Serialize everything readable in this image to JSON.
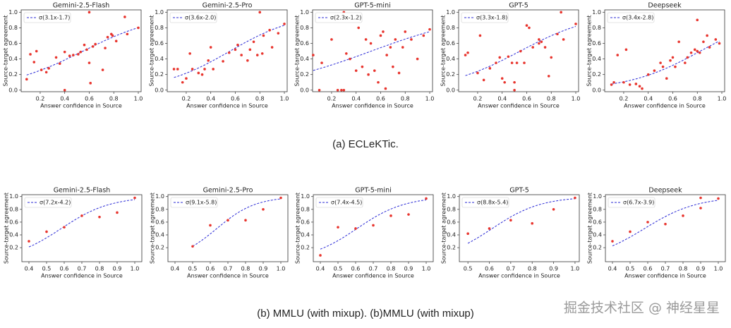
{
  "chart_data": [
    {
      "type": "scatter",
      "title": "Gemini-2.5-Flash",
      "xlabel": "Answer confidence in Source",
      "ylabel": "Source-target agreement",
      "color": "#e8352e",
      "x": [
        0.09,
        0.12,
        0.15,
        0.17,
        0.21,
        0.25,
        0.27,
        0.33,
        0.36,
        0.4,
        0.44,
        0.47,
        0.51,
        0.53,
        0.56,
        0.58,
        0.6,
        0.61,
        0.63,
        0.65,
        0.71,
        0.73,
        0.75,
        0.78,
        0.79,
        0.82,
        0.89,
        0.91,
        1.0,
        0.6,
        0.4
      ],
      "y": [
        0.14,
        0.46,
        0.36,
        0.5,
        0.26,
        0.23,
        0.28,
        0.42,
        0.34,
        0.49,
        0.44,
        0.45,
        0.46,
        0.49,
        0.58,
        0.52,
        0.35,
        0.09,
        0.56,
        0.59,
        0.26,
        0.54,
        0.68,
        0.72,
        0.7,
        0.63,
        0.94,
        0.72,
        0.8,
        1.0,
        0.0
      ],
      "fit": {
        "label": "σ(3.1x-1.7)",
        "slope": 3.1,
        "intercept": -1.7,
        "color": "#2b2bd6"
      },
      "xlim": [
        0.045,
        1.023
      ],
      "ylim": [
        -0.02,
        1.03
      ],
      "xticks": [
        0.2,
        0.4,
        0.6,
        0.8,
        {
          "value": 1,
          "label": "1.0"
        }
      ],
      "yticks": [
        {
          "value": 0,
          "label": "0.0"
        },
        0.2,
        0.4,
        0.6,
        0.8,
        {
          "value": 1,
          "label": "1.0"
        }
      ]
    },
    {
      "type": "scatter",
      "title": "Gemini-2.5-Pro",
      "xlabel": "Answer confidence in Source",
      "ylabel": "Source-target agreement",
      "color": "#e8352e",
      "x": [
        0.1,
        0.13,
        0.17,
        0.2,
        0.23,
        0.25,
        0.3,
        0.33,
        0.35,
        0.38,
        0.4,
        0.42,
        0.5,
        0.55,
        0.6,
        0.62,
        0.65,
        0.7,
        0.72,
        0.75,
        0.78,
        0.8,
        0.83,
        0.88,
        0.9,
        0.95,
        1.0,
        0.82
      ],
      "y": [
        0.27,
        0.27,
        0.1,
        0.15,
        0.47,
        0.27,
        0.22,
        0.2,
        0.27,
        0.38,
        0.55,
        0.27,
        0.37,
        0.48,
        0.52,
        0.58,
        0.45,
        0.38,
        0.52,
        0.62,
        0.45,
        1.0,
        0.7,
        0.77,
        0.55,
        0.73,
        0.85,
        0.47
      ],
      "fit": {
        "label": "σ(3.6x-2.0)",
        "slope": 3.6,
        "intercept": -2.0,
        "color": "#2b2bd6"
      },
      "xlim": [
        0.045,
        1.023
      ],
      "ylim": [
        -0.02,
        1.03
      ],
      "xticks": [
        0.2,
        0.4,
        0.6,
        0.8,
        {
          "value": 1,
          "label": "1.0"
        }
      ],
      "yticks": [
        {
          "value": 0,
          "label": "0.0"
        },
        0.2,
        0.4,
        0.6,
        0.8,
        {
          "value": 1,
          "label": "1.0"
        }
      ]
    },
    {
      "type": "scatter",
      "title": "GPT-5-mini",
      "xlabel": "Answer confidence in Source",
      "ylabel": "Source-target agreement",
      "color": "#e8352e",
      "x": [
        0.05,
        0.1,
        0.12,
        0.2,
        0.25,
        0.28,
        0.3,
        0.32,
        0.35,
        0.4,
        0.42,
        0.45,
        0.48,
        0.5,
        0.52,
        0.55,
        0.58,
        0.6,
        0.62,
        0.65,
        0.68,
        0.7,
        0.72,
        0.75,
        0.78,
        0.8,
        0.85,
        0.9,
        0.95,
        1.0,
        0.3,
        0.64
      ],
      "y": [
        0.45,
        0.0,
        0.35,
        0.65,
        0.0,
        0.0,
        0.0,
        0.47,
        0.4,
        0.25,
        0.8,
        0.3,
        0.65,
        0.2,
        0.6,
        0.25,
        0.1,
        0.7,
        0.75,
        0.45,
        0.55,
        0.3,
        0.65,
        0.22,
        0.55,
        0.75,
        0.65,
        0.4,
        0.7,
        0.78,
        1.0,
        0.02
      ],
      "fit": {
        "label": "σ(2.3x-1.2)",
        "slope": 2.3,
        "intercept": -1.2,
        "color": "#2b2bd6"
      },
      "xlim": [
        0.045,
        1.023
      ],
      "ylim": [
        -0.02,
        1.03
      ],
      "xticks": [
        0.2,
        0.4,
        0.6,
        0.8,
        {
          "value": 1,
          "label": "1.0"
        }
      ],
      "yticks": [
        {
          "value": 0,
          "label": "0.0"
        },
        0.2,
        0.4,
        0.6,
        0.8,
        {
          "value": 1,
          "label": "1.0"
        }
      ]
    },
    {
      "type": "scatter",
      "title": "GPT-5",
      "xlabel": "Answer confidence in Source",
      "ylabel": "Source-target agreement",
      "color": "#e8352e",
      "x": [
        0.1,
        0.12,
        0.2,
        0.22,
        0.25,
        0.3,
        0.35,
        0.38,
        0.4,
        0.42,
        0.45,
        0.48,
        0.5,
        0.52,
        0.55,
        0.58,
        0.6,
        0.62,
        0.65,
        0.7,
        0.72,
        0.75,
        0.78,
        0.8,
        0.85,
        0.88,
        0.9,
        1.0,
        0.7,
        0.5
      ],
      "y": [
        0.45,
        0.48,
        0.22,
        0.7,
        0.13,
        0.28,
        0.35,
        0.42,
        0.15,
        0.1,
        0.43,
        0.35,
        0.1,
        0.35,
        0.5,
        0.35,
        0.83,
        0.8,
        0.55,
        0.65,
        0.62,
        0.55,
        0.18,
        0.42,
        0.72,
        1.0,
        0.65,
        0.85,
        0.6,
        0.0
      ],
      "fit": {
        "label": "σ(3.3x-1.8)",
        "slope": 3.3,
        "intercept": -1.8,
        "color": "#2b2bd6"
      },
      "xlim": [
        0.045,
        1.023
      ],
      "ylim": [
        -0.02,
        1.03
      ],
      "xticks": [
        0.2,
        0.4,
        0.6,
        0.8,
        {
          "value": 1,
          "label": "1.0"
        }
      ],
      "yticks": [
        {
          "value": 0,
          "label": "0.0"
        },
        0.2,
        0.4,
        0.6,
        0.8,
        {
          "value": 1,
          "label": "1.0"
        }
      ]
    },
    {
      "type": "scatter",
      "title": "Deepseek",
      "xlabel": "Answer confidence in Source",
      "ylabel": "Source-target agreement",
      "color": "#e8352e",
      "x": [
        0.1,
        0.12,
        0.15,
        0.2,
        0.22,
        0.25,
        0.3,
        0.33,
        0.35,
        0.4,
        0.45,
        0.5,
        0.52,
        0.55,
        0.58,
        0.6,
        0.62,
        0.65,
        0.7,
        0.72,
        0.75,
        0.78,
        0.8,
        0.82,
        0.85,
        0.88,
        0.9,
        0.95,
        0.98,
        0.8
      ],
      "y": [
        0.07,
        0.1,
        0.45,
        0.1,
        0.52,
        0.07,
        0.08,
        0.05,
        0.02,
        0.2,
        0.25,
        0.35,
        0.3,
        0.15,
        0.38,
        0.42,
        0.3,
        0.62,
        0.35,
        0.42,
        0.48,
        0.52,
        0.9,
        0.48,
        0.62,
        0.7,
        0.55,
        0.65,
        0.6,
        0.5
      ],
      "fit": {
        "label": "σ(3.4x-2.8)",
        "slope": 3.4,
        "intercept": -2.8,
        "color": "#2b2bd6"
      },
      "xlim": [
        0.045,
        1.023
      ],
      "ylim": [
        -0.02,
        1.03
      ],
      "xticks": [
        0.2,
        0.4,
        0.6,
        0.8,
        {
          "value": 1,
          "label": "1.0"
        }
      ],
      "yticks": [
        {
          "value": 0,
          "label": "0.0"
        },
        0.2,
        0.4,
        0.6,
        0.8,
        {
          "value": 1,
          "label": "1.0"
        }
      ]
    },
    {
      "type": "scatter",
      "title": "Gemini-2.5-Flash",
      "xlabel": "Answer confidence in Source",
      "ylabel": "Source-target agreement",
      "color": "#e8352e",
      "x": [
        0.4,
        0.5,
        0.6,
        0.7,
        0.8,
        0.9,
        1.0
      ],
      "y": [
        0.3,
        0.45,
        0.52,
        0.7,
        0.68,
        0.75,
        0.98
      ],
      "fit": {
        "label": "σ(7.2x-4.2)",
        "slope": 7.2,
        "intercept": -4.2,
        "color": "#2b2bd6"
      },
      "xlim": [
        0.36,
        1.04
      ],
      "ylim": [
        -0.02,
        1.03
      ],
      "xticks": [
        0.4,
        0.5,
        0.6,
        0.7,
        0.8,
        0.9,
        {
          "value": 1,
          "label": "1.0"
        }
      ],
      "yticks": [
        0.2,
        0.4,
        0.6,
        0.8,
        {
          "value": 1,
          "label": "1.0"
        }
      ]
    },
    {
      "type": "scatter",
      "title": "Gemini-2.5-Pro",
      "xlabel": "Answer confidence in Source",
      "ylabel": "Source-target agreement",
      "color": "#e8352e",
      "x": [
        0.5,
        0.6,
        0.7,
        0.8,
        0.9,
        1.0
      ],
      "y": [
        0.22,
        0.55,
        0.63,
        0.63,
        0.8,
        0.98
      ],
      "fit": {
        "label": "σ(9.1x-5.8)",
        "slope": 9.1,
        "intercept": -5.8,
        "color": "#2b2bd6"
      },
      "xlim": [
        0.36,
        1.04
      ],
      "ylim": [
        -0.02,
        1.03
      ],
      "xticks": [
        0.4,
        0.5,
        0.6,
        0.7,
        0.8,
        0.9,
        {
          "value": 1,
          "label": "1.0"
        }
      ],
      "yticks": [
        0.2,
        0.4,
        0.6,
        0.8,
        {
          "value": 1,
          "label": "1.0"
        }
      ]
    },
    {
      "type": "scatter",
      "title": "GPT-5-mini",
      "xlabel": "Answer confidence in Source",
      "ylabel": "Source-target agreement",
      "color": "#e8352e",
      "x": [
        0.4,
        0.5,
        0.6,
        0.7,
        0.8,
        0.9,
        1.0
      ],
      "y": [
        0.08,
        0.52,
        0.5,
        0.55,
        0.7,
        0.72,
        0.97
      ],
      "fit": {
        "label": "σ(7.4x-4.5)",
        "slope": 7.4,
        "intercept": -4.5,
        "color": "#2b2bd6"
      },
      "xlim": [
        0.36,
        1.04
      ],
      "ylim": [
        -0.02,
        1.03
      ],
      "xticks": [
        0.4,
        0.5,
        0.6,
        0.7,
        0.8,
        0.9,
        {
          "value": 1,
          "label": "1.0"
        }
      ],
      "yticks": [
        0.2,
        0.4,
        0.6,
        0.8,
        {
          "value": 1,
          "label": "1.0"
        }
      ]
    },
    {
      "type": "scatter",
      "title": "GPT-5",
      "xlabel": "Answer confidence in Source",
      "ylabel": "Source-target agreement",
      "color": "#e8352e",
      "x": [
        0.5,
        0.6,
        0.7,
        0.8,
        0.9,
        1.0
      ],
      "y": [
        0.42,
        0.5,
        0.63,
        0.58,
        0.8,
        0.98
      ],
      "fit": {
        "label": "σ(8.8x-5.4)",
        "slope": 8.8,
        "intercept": -5.4,
        "color": "#2b2bd6"
      },
      "xlim": [
        0.46,
        1.02
      ],
      "ylim": [
        -0.02,
        1.03
      ],
      "xticks": [
        0.5,
        0.6,
        0.7,
        0.8,
        0.9,
        {
          "value": 1,
          "label": "1.0"
        }
      ],
      "yticks": [
        0.2,
        0.4,
        0.6,
        0.8,
        {
          "value": 1,
          "label": "1.0"
        }
      ]
    },
    {
      "type": "scatter",
      "title": "Deepseek",
      "xlabel": "Answer confidence in Source",
      "ylabel": "Source-target agreement",
      "color": "#e8352e",
      "x": [
        0.4,
        0.5,
        0.6,
        0.7,
        0.8,
        0.9,
        0.9,
        1.0
      ],
      "y": [
        0.3,
        0.45,
        0.6,
        0.57,
        0.7,
        0.98,
        0.82,
        0.97
      ],
      "fit": {
        "label": "σ(6.7x-3.9)",
        "slope": 6.7,
        "intercept": -3.9,
        "color": "#2b2bd6"
      },
      "xlim": [
        0.36,
        1.04
      ],
      "ylim": [
        -0.02,
        1.03
      ],
      "xticks": [
        0.4,
        0.5,
        0.6,
        0.7,
        0.8,
        0.9,
        {
          "value": 1,
          "label": "1.0"
        }
      ],
      "yticks": [
        0.2,
        0.4,
        0.6,
        0.8,
        {
          "value": 1,
          "label": "1.0"
        }
      ]
    }
  ],
  "captions": {
    "top": "(a) ECLeKTic.",
    "bottom": "(b) MMLU (with mixup).  (b)MMLU (with mixup)"
  },
  "watermark": "掘金技术社区 @ 神经星星"
}
